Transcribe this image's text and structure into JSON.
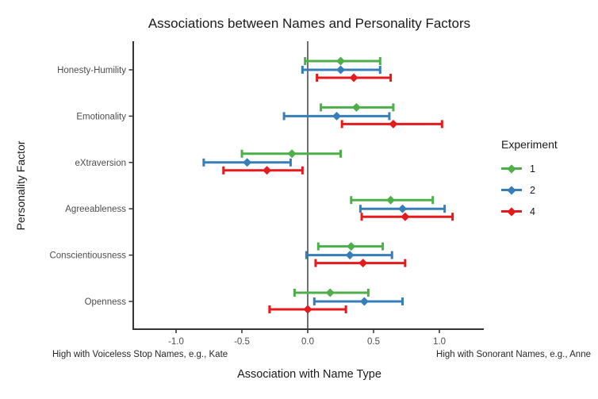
{
  "chart_data": {
    "type": "dot-whisker",
    "title": "Associations between Names and Personality Factors",
    "xlabel": "Association with Name Type",
    "ylabel": "Personality Factor",
    "x_axis_note_left": "High with Voiceless Stop Names, e.g., Kate",
    "x_axis_note_right": "High with Sonorant Names, e.g., Anne",
    "xlim": [
      -1.33,
      1.33
    ],
    "reference_line_x": 0,
    "grid": false,
    "x_ticks": [
      {
        "value": -1.0,
        "label": "-1.0"
      },
      {
        "value": -0.5,
        "label": "-0.5"
      },
      {
        "value": 0.0,
        "label": "0.0"
      },
      {
        "value": 0.5,
        "label": "0.5"
      },
      {
        "value": 1.0,
        "label": "1.0"
      }
    ],
    "categories": [
      "Honesty-Humility",
      "Emotionality",
      "eXtraversion",
      "Agreeableness",
      "Conscientiousness",
      "Openness"
    ],
    "legend": {
      "title": "Experiment",
      "position": "right"
    },
    "series": [
      {
        "name": "1",
        "color": "#4daf4a",
        "estimates": [
          0.25,
          0.37,
          -0.12,
          0.63,
          0.33,
          0.17
        ],
        "ci_low": [
          -0.02,
          0.1,
          -0.5,
          0.33,
          0.08,
          -0.1
        ],
        "ci_high": [
          0.55,
          0.65,
          0.25,
          0.95,
          0.57,
          0.46
        ]
      },
      {
        "name": "2",
        "color": "#377eb8",
        "estimates": [
          0.25,
          0.22,
          -0.46,
          0.72,
          0.32,
          0.43
        ],
        "ci_low": [
          -0.04,
          -0.18,
          -0.79,
          0.4,
          -0.01,
          0.05
        ],
        "ci_high": [
          0.55,
          0.62,
          -0.13,
          1.04,
          0.64,
          0.72
        ]
      },
      {
        "name": "4",
        "color": "#e41a1c",
        "estimates": [
          0.35,
          0.65,
          -0.31,
          0.74,
          0.42,
          0.0
        ],
        "ci_low": [
          0.07,
          0.26,
          -0.64,
          0.41,
          0.06,
          -0.29
        ],
        "ci_high": [
          0.63,
          1.02,
          -0.04,
          1.1,
          0.74,
          0.29
        ]
      }
    ],
    "colors": {
      "axis_line": "#333333",
      "reference_line": "#404040",
      "tick_text": "#4d4d4d",
      "title_text": "#1a1a1a"
    }
  }
}
